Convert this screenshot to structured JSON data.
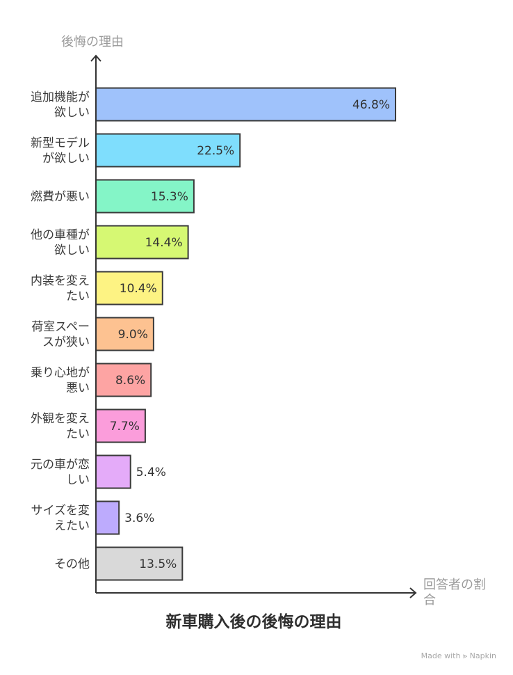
{
  "chart_data": {
    "type": "bar",
    "orientation": "horizontal",
    "title": "新車購入後の後悔の理由",
    "ylabel": "後悔の理由",
    "xlabel_lines": [
      "回答者の割",
      "合"
    ],
    "categories": [
      [
        "追加機能が",
        "欲しい"
      ],
      [
        "新型モデル",
        "が欲しい"
      ],
      [
        "燃費が悪い"
      ],
      [
        "他の車種が",
        "欲しい"
      ],
      [
        "内装を変え",
        "たい"
      ],
      [
        "荷室スペー",
        "スが狭い"
      ],
      [
        "乗り心地が",
        "悪い"
      ],
      [
        "外観を変え",
        "たい"
      ],
      [
        "元の車が恋",
        "しい"
      ],
      [
        "サイズを変",
        "えたい"
      ],
      [
        "その他"
      ]
    ],
    "values": [
      46.8,
      22.5,
      15.3,
      14.4,
      10.4,
      9.0,
      8.6,
      7.7,
      5.4,
      3.6,
      13.5
    ],
    "value_labels": [
      "46.8%",
      "22.5%",
      "15.3%",
      "14.4%",
      "10.4%",
      "9.0%",
      "8.6%",
      "7.7%",
      "5.4%",
      "3.6%",
      "13.5%"
    ],
    "colors": [
      "#9fc2fb",
      "#7fdefd",
      "#84f5c7",
      "#d6f873",
      "#fdf383",
      "#fdc291",
      "#fda4a3",
      "#fb9ddb",
      "#e4abf9",
      "#bdabfd",
      "#d9d9d9"
    ]
  },
  "footer": {
    "credit": "Made with ⪢ Napkin"
  }
}
